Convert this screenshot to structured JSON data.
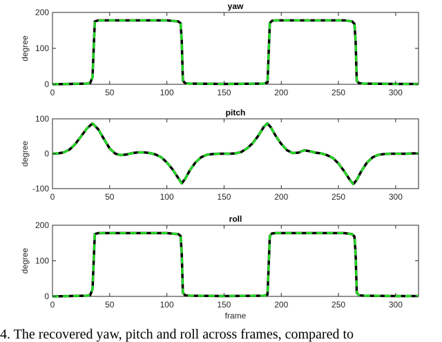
{
  "chart_data": [
    {
      "type": "line",
      "title": "yaw",
      "xlabel": "",
      "ylabel": "degree",
      "xlim": [
        0,
        320
      ],
      "ylim": [
        0,
        200
      ],
      "xticks": [
        0,
        50,
        100,
        150,
        200,
        250,
        300
      ],
      "yticks": [
        0,
        100,
        200
      ],
      "grid": false,
      "series": [
        {
          "color": "#000000",
          "style": "solid",
          "x": [
            0,
            30,
            33,
            35,
            37,
            40,
            60,
            100,
            110,
            112,
            113,
            114,
            116,
            120,
            150,
            185,
            188,
            190,
            192,
            195,
            230,
            255,
            262,
            264,
            265,
            266,
            268,
            272,
            300,
            320
          ],
          "y": [
            0,
            2,
            4,
            20,
            175,
            178,
            178,
            178,
            175,
            170,
            120,
            10,
            3,
            2,
            1,
            2,
            5,
            170,
            177,
            178,
            178,
            178,
            175,
            168,
            120,
            10,
            3,
            2,
            1,
            1
          ]
        },
        {
          "color": "#22dd22",
          "style": "dashed",
          "x": [
            0,
            30,
            33,
            35,
            37,
            40,
            60,
            100,
            110,
            112,
            113,
            114,
            116,
            120,
            150,
            185,
            188,
            190,
            192,
            195,
            230,
            255,
            262,
            264,
            265,
            266,
            268,
            272,
            300,
            320
          ],
          "y": [
            0,
            2,
            4,
            20,
            175,
            178,
            178,
            178,
            175,
            170,
            120,
            10,
            3,
            2,
            1,
            2,
            5,
            170,
            177,
            178,
            178,
            178,
            175,
            168,
            120,
            10,
            3,
            2,
            1,
            1
          ]
        }
      ]
    },
    {
      "type": "line",
      "title": "pitch",
      "xlabel": "",
      "ylabel": "degree",
      "xlim": [
        0,
        320
      ],
      "ylim": [
        -100,
        100
      ],
      "xticks": [
        0,
        50,
        100,
        150,
        200,
        250,
        300
      ],
      "yticks": [
        -100,
        0,
        100
      ],
      "grid": false,
      "series": [
        {
          "color": "#000000",
          "style": "solid",
          "x": [
            0,
            5,
            10,
            15,
            20,
            25,
            30,
            35,
            40,
            45,
            50,
            55,
            60,
            65,
            70,
            75,
            80,
            85,
            90,
            95,
            100,
            105,
            110,
            113,
            116,
            120,
            125,
            130,
            135,
            140,
            145,
            150,
            155,
            160,
            165,
            170,
            175,
            180,
            185,
            188,
            191,
            195,
            200,
            205,
            210,
            215,
            220,
            225,
            230,
            235,
            240,
            245,
            250,
            255,
            260,
            263,
            266,
            270,
            275,
            280,
            285,
            290,
            295,
            300,
            305,
            310,
            315,
            320
          ],
          "y": [
            0,
            1,
            4,
            12,
            28,
            50,
            72,
            87,
            70,
            42,
            15,
            0,
            -4,
            -2,
            2,
            4,
            4,
            2,
            -2,
            -10,
            -25,
            -45,
            -70,
            -85,
            -72,
            -48,
            -25,
            -10,
            -3,
            -1,
            0,
            0,
            0,
            1,
            5,
            15,
            30,
            52,
            78,
            87,
            75,
            52,
            28,
            10,
            2,
            3,
            10,
            7,
            3,
            1,
            -4,
            -12,
            -28,
            -50,
            -75,
            -87,
            -75,
            -50,
            -25,
            -10,
            -3,
            -1,
            0,
            0,
            0,
            0,
            1,
            1
          ]
        },
        {
          "color": "#22dd22",
          "style": "dashed",
          "x": [
            0,
            5,
            10,
            15,
            20,
            25,
            30,
            35,
            40,
            45,
            50,
            55,
            60,
            65,
            70,
            75,
            80,
            85,
            90,
            95,
            100,
            105,
            110,
            113,
            116,
            120,
            125,
            130,
            135,
            140,
            145,
            150,
            155,
            160,
            165,
            170,
            175,
            180,
            185,
            188,
            191,
            195,
            200,
            205,
            210,
            215,
            220,
            225,
            230,
            235,
            240,
            245,
            250,
            255,
            260,
            263,
            266,
            270,
            275,
            280,
            285,
            290,
            295,
            300,
            305,
            310,
            315,
            320
          ],
          "y": [
            0,
            1,
            4,
            12,
            28,
            50,
            72,
            87,
            70,
            42,
            15,
            0,
            -4,
            -2,
            2,
            4,
            4,
            2,
            -2,
            -10,
            -25,
            -45,
            -70,
            -85,
            -72,
            -48,
            -25,
            -10,
            -3,
            -1,
            0,
            0,
            0,
            1,
            5,
            15,
            30,
            52,
            78,
            87,
            75,
            52,
            28,
            10,
            2,
            3,
            10,
            7,
            3,
            1,
            -4,
            -12,
            -28,
            -50,
            -75,
            -87,
            -75,
            -50,
            -25,
            -10,
            -3,
            -1,
            0,
            0,
            0,
            0,
            1,
            1
          ]
        }
      ]
    },
    {
      "type": "line",
      "title": "roll",
      "xlabel": "frame",
      "ylabel": "degree",
      "xlim": [
        0,
        320
      ],
      "ylim": [
        0,
        200
      ],
      "xticks": [
        0,
        50,
        100,
        150,
        200,
        250,
        300
      ],
      "yticks": [
        0,
        100,
        200
      ],
      "grid": false,
      "series": [
        {
          "color": "#000000",
          "style": "solid",
          "x": [
            0,
            30,
            33,
            35,
            37,
            40,
            60,
            100,
            110,
            112,
            113,
            114,
            116,
            120,
            150,
            185,
            188,
            190,
            192,
            195,
            230,
            255,
            262,
            264,
            265,
            266,
            268,
            272,
            300,
            320
          ],
          "y": [
            0,
            2,
            4,
            20,
            175,
            178,
            178,
            178,
            175,
            170,
            120,
            10,
            3,
            2,
            1,
            2,
            5,
            170,
            177,
            178,
            178,
            178,
            175,
            168,
            120,
            10,
            3,
            2,
            1,
            1
          ]
        },
        {
          "color": "#22dd22",
          "style": "dashed",
          "x": [
            0,
            30,
            33,
            35,
            37,
            40,
            60,
            100,
            110,
            112,
            113,
            114,
            116,
            120,
            150,
            185,
            188,
            190,
            192,
            195,
            230,
            255,
            262,
            264,
            265,
            266,
            268,
            272,
            300,
            320
          ],
          "y": [
            0,
            2,
            4,
            20,
            175,
            178,
            178,
            178,
            175,
            170,
            120,
            10,
            3,
            2,
            1,
            2,
            5,
            170,
            177,
            178,
            178,
            178,
            175,
            168,
            120,
            10,
            3,
            2,
            1,
            1
          ]
        }
      ]
    }
  ],
  "caption": "4. The recovered yaw, pitch and roll across frames, compared to"
}
